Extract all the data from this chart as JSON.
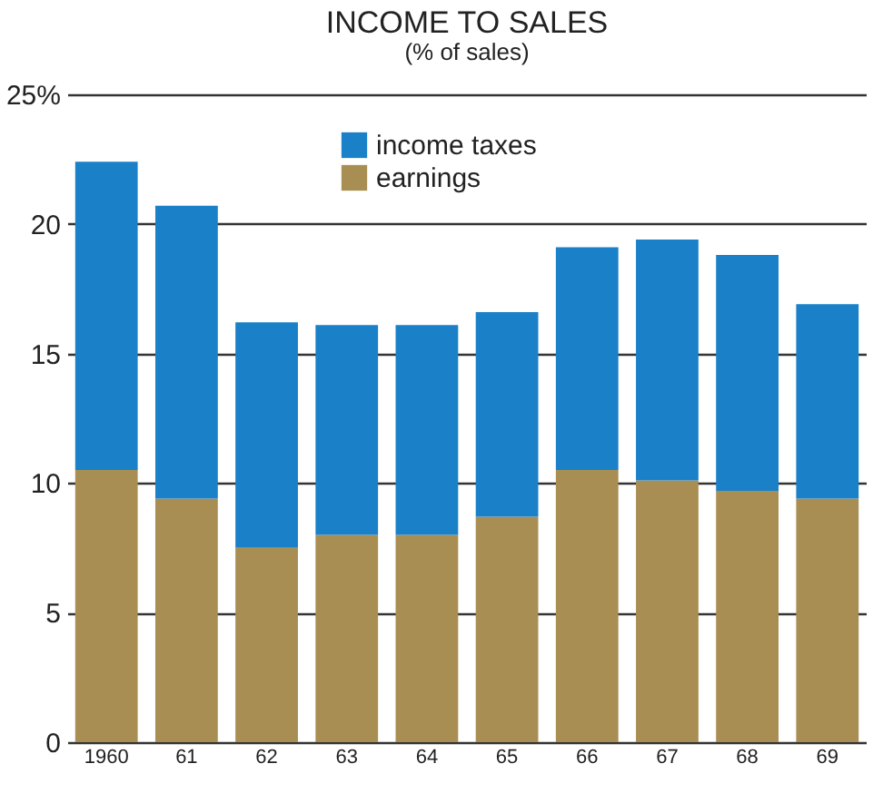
{
  "chart_data": {
    "type": "bar",
    "title": "INCOME TO SALES",
    "subtitle": "(% of sales)",
    "categories": [
      "1960",
      "61",
      "62",
      "63",
      "64",
      "65",
      "66",
      "67",
      "68",
      "69"
    ],
    "stacked": true,
    "series": [
      {
        "name": "earnings",
        "color": "#a88e52",
        "values": [
          10.5,
          9.4,
          7.5,
          8.0,
          8.0,
          8.7,
          10.5,
          10.1,
          9.7,
          9.4
        ]
      },
      {
        "name": "income taxes",
        "color": "#1a80c8",
        "values": [
          11.9,
          11.3,
          8.7,
          8.1,
          8.1,
          7.9,
          8.6,
          9.3,
          9.1,
          7.5
        ]
      }
    ],
    "ylim": [
      0,
      25
    ],
    "yticks": [
      0,
      5,
      10,
      15,
      20,
      {
        "value": 25,
        "label": "25%"
      }
    ],
    "grid": "y",
    "legend": "top"
  }
}
